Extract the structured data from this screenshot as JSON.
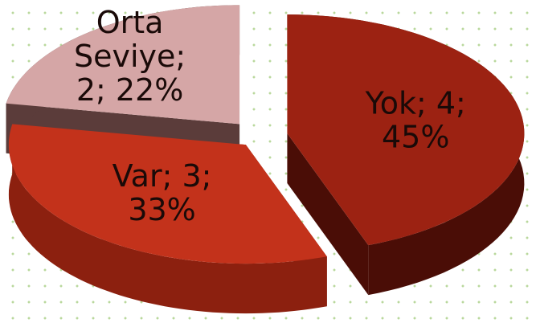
{
  "chart_data": {
    "type": "pie3d",
    "categories": [
      "Yok",
      "Var",
      "Orta Seviye"
    ],
    "values": [
      4,
      3,
      2
    ],
    "value_labels": [
      "Yok; 4; 45%",
      "Var; 3; 33%",
      "Orta Seviye; 2; 22%"
    ],
    "colors": [
      "#9c2212",
      "#c3321b",
      "#d5a6a6"
    ],
    "side_colors": [
      "#4a0d06",
      "#8c200f",
      "#5b3c3a"
    ]
  }
}
